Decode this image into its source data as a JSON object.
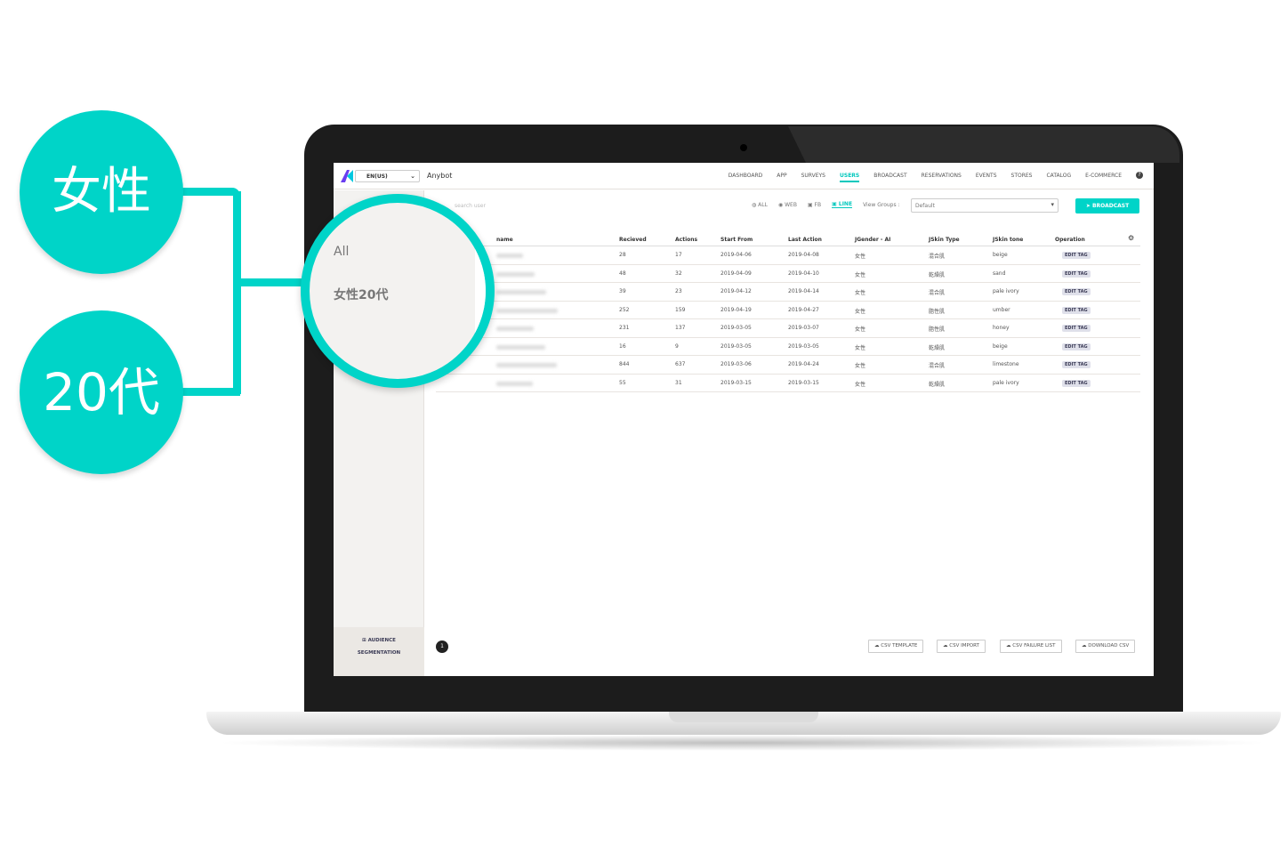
{
  "callouts": {
    "gender": "女性",
    "age": "20代"
  },
  "magnifier": {
    "all": "All",
    "segment": "女性20代"
  },
  "header": {
    "language": "EN(US)",
    "brand": "Anybot",
    "nav": [
      "DASHBOARD",
      "APP",
      "SURVEYS",
      "USERS",
      "BROADCAST",
      "RESERVATIONS",
      "EVENTS",
      "STORES",
      "CATALOG",
      "E-COMMERCE"
    ],
    "active_nav": "USERS",
    "help": "?"
  },
  "toolbar": {
    "search_placeholder": "search user",
    "filters": [
      "ALL",
      "WEB",
      "FB",
      "LINE"
    ],
    "active_filter": "LINE",
    "view_groups_label": "View Groups :",
    "view_groups_value": "Default",
    "broadcast_label": "BROADCAST"
  },
  "sidebar": {
    "audience_line1": "AUDIENCE",
    "audience_line2": "SEGMENTATION"
  },
  "table": {
    "columns": [
      "name",
      "Recieved",
      "Actions",
      "Start From",
      "Last Action",
      "JGender - AI",
      "JSkin Type",
      "JSkin tone",
      "Operation"
    ],
    "rows": [
      [
        "28",
        "17",
        "2019-04-06",
        "2019-04-08",
        "女性",
        "混合肌",
        "beige",
        "EDIT TAG"
      ],
      [
        "48",
        "32",
        "2019-04-09",
        "2019-04-10",
        "女性",
        "乾燥肌",
        "sand",
        "EDIT TAG"
      ],
      [
        "39",
        "23",
        "2019-04-12",
        "2019-04-14",
        "女性",
        "混合肌",
        "pale ivory",
        "EDIT TAG"
      ],
      [
        "252",
        "159",
        "2019-04-19",
        "2019-04-27",
        "女性",
        "脂性肌",
        "umber",
        "EDIT TAG"
      ],
      [
        "231",
        "137",
        "2019-03-05",
        "2019-03-07",
        "女性",
        "脂性肌",
        "honey",
        "EDIT TAG"
      ],
      [
        "16",
        "9",
        "2019-03-05",
        "2019-03-05",
        "女性",
        "乾燥肌",
        "beige",
        "EDIT TAG"
      ],
      [
        "844",
        "637",
        "2019-03-06",
        "2019-04-24",
        "女性",
        "混合肌",
        "limestone",
        "EDIT TAG"
      ],
      [
        "55",
        "31",
        "2019-03-15",
        "2019-03-15",
        "女性",
        "乾燥肌",
        "pale ivory",
        "EDIT TAG"
      ]
    ]
  },
  "pagination": {
    "current": "1"
  },
  "footer_buttons": [
    "CSV TEMPLATE",
    "CSV IMPORT",
    "CSV FAILURE LIST",
    "DOWNLOAD CSV"
  ],
  "colors": {
    "accent": "#00d4c8",
    "bezel": "#1c1c1c",
    "sidebar": "#f3f2f0"
  }
}
